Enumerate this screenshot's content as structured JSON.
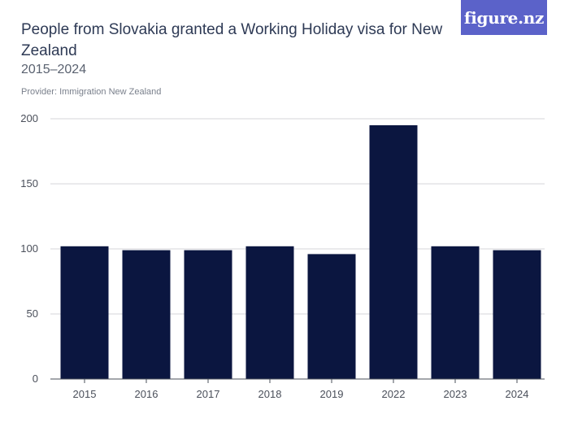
{
  "header": {
    "title": "People from Slovakia granted a Working Holiday visa for New Zealand",
    "subtitle": "2015–2024",
    "provider": "Provider: Immigration New Zealand"
  },
  "logo": {
    "text": "figure.nz",
    "color": "#5b62c9"
  },
  "chart_data": {
    "type": "bar",
    "categories": [
      "2015",
      "2016",
      "2017",
      "2018",
      "2019",
      "2022",
      "2023",
      "2024"
    ],
    "values": [
      102,
      99,
      99,
      102,
      96,
      195,
      102,
      99
    ],
    "ylim": [
      0,
      200
    ],
    "yticks": [
      0,
      50,
      100,
      150,
      200
    ],
    "grid": true,
    "bar_color": "#0b1640",
    "xlabel": "",
    "ylabel": ""
  }
}
